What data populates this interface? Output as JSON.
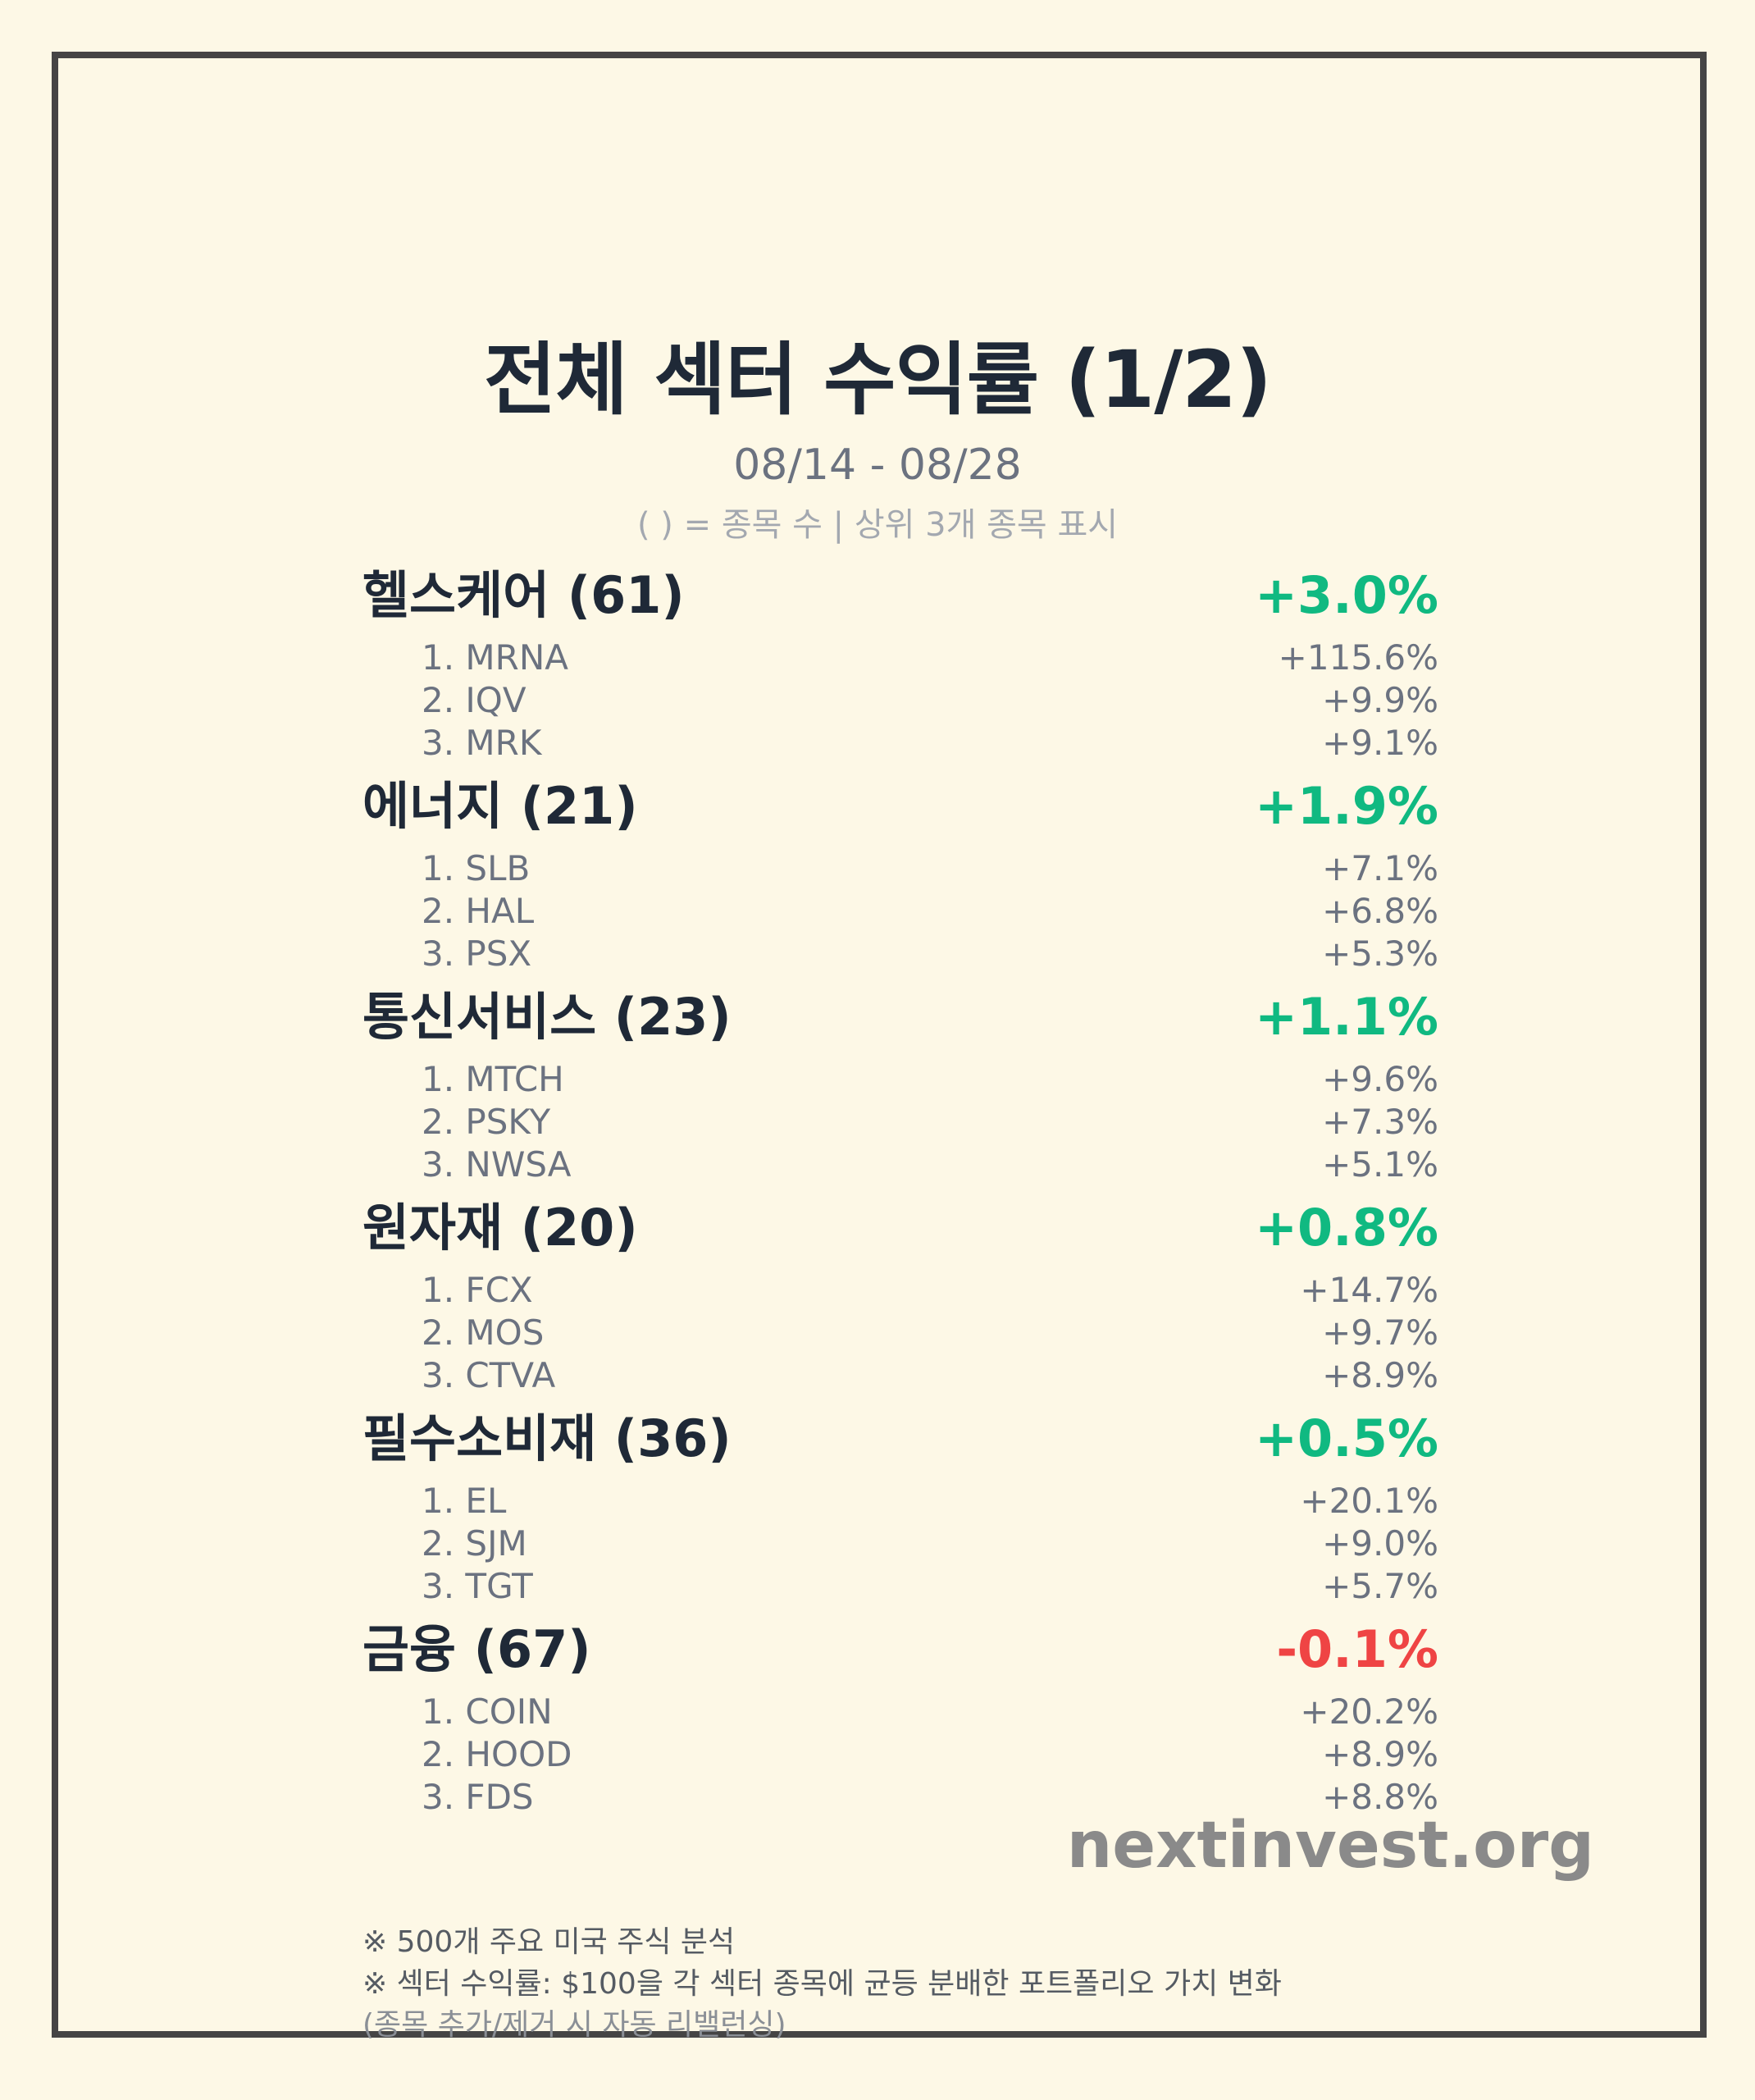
{
  "title": "전체 섹터 수익률 (1/2)",
  "date_range": "08/14 - 08/28",
  "legend_note": "( ) = 종목 수 | 상위 3개 종목 표시",
  "colors": {
    "background": "#fdf8e6",
    "frame": "#454545",
    "positive": "#10b981",
    "negative": "#ef4444",
    "text_dark": "#1f2937",
    "text_muted": "#6b7280"
  },
  "sectors": [
    {
      "name": "헬스케어 (61)",
      "return": "+3.0%",
      "direction": "positive",
      "stocks": [
        {
          "name": "1. MRNA",
          "return": "+115.6%"
        },
        {
          "name": "2. IQV",
          "return": "+9.9%"
        },
        {
          "name": "3. MRK",
          "return": "+9.1%"
        }
      ]
    },
    {
      "name": "에너지 (21)",
      "return": "+1.9%",
      "direction": "positive",
      "stocks": [
        {
          "name": "1. SLB",
          "return": "+7.1%"
        },
        {
          "name": "2. HAL",
          "return": "+6.8%"
        },
        {
          "name": "3. PSX",
          "return": "+5.3%"
        }
      ]
    },
    {
      "name": "통신서비스 (23)",
      "return": "+1.1%",
      "direction": "positive",
      "stocks": [
        {
          "name": "1. MTCH",
          "return": "+9.6%"
        },
        {
          "name": "2. PSKY",
          "return": "+7.3%"
        },
        {
          "name": "3. NWSA",
          "return": "+5.1%"
        }
      ]
    },
    {
      "name": "원자재 (20)",
      "return": "+0.8%",
      "direction": "positive",
      "stocks": [
        {
          "name": "1. FCX",
          "return": "+14.7%"
        },
        {
          "name": "2. MOS",
          "return": "+9.7%"
        },
        {
          "name": "3. CTVA",
          "return": "+8.9%"
        }
      ]
    },
    {
      "name": "필수소비재 (36)",
      "return": "+0.5%",
      "direction": "positive",
      "stocks": [
        {
          "name": "1. EL",
          "return": "+20.1%"
        },
        {
          "name": "2. SJM",
          "return": "+9.0%"
        },
        {
          "name": "3. TGT",
          "return": "+5.7%"
        }
      ]
    },
    {
      "name": "금융 (67)",
      "return": "-0.1%",
      "direction": "negative",
      "stocks": [
        {
          "name": "1. COIN",
          "return": "+20.2%"
        },
        {
          "name": "2. HOOD",
          "return": "+8.9%"
        },
        {
          "name": "3. FDS",
          "return": "+8.8%"
        }
      ]
    }
  ],
  "watermark": "nextinvest.org",
  "footnotes": [
    "※ 500개 주요 미국 주식 분석",
    "※ 섹터 수익률: $100을 각 섹터 종목에 균등 분배한 포트폴리오 가치 변화",
    "(종목 추가/제거 시 자동 리밸런싱)"
  ]
}
